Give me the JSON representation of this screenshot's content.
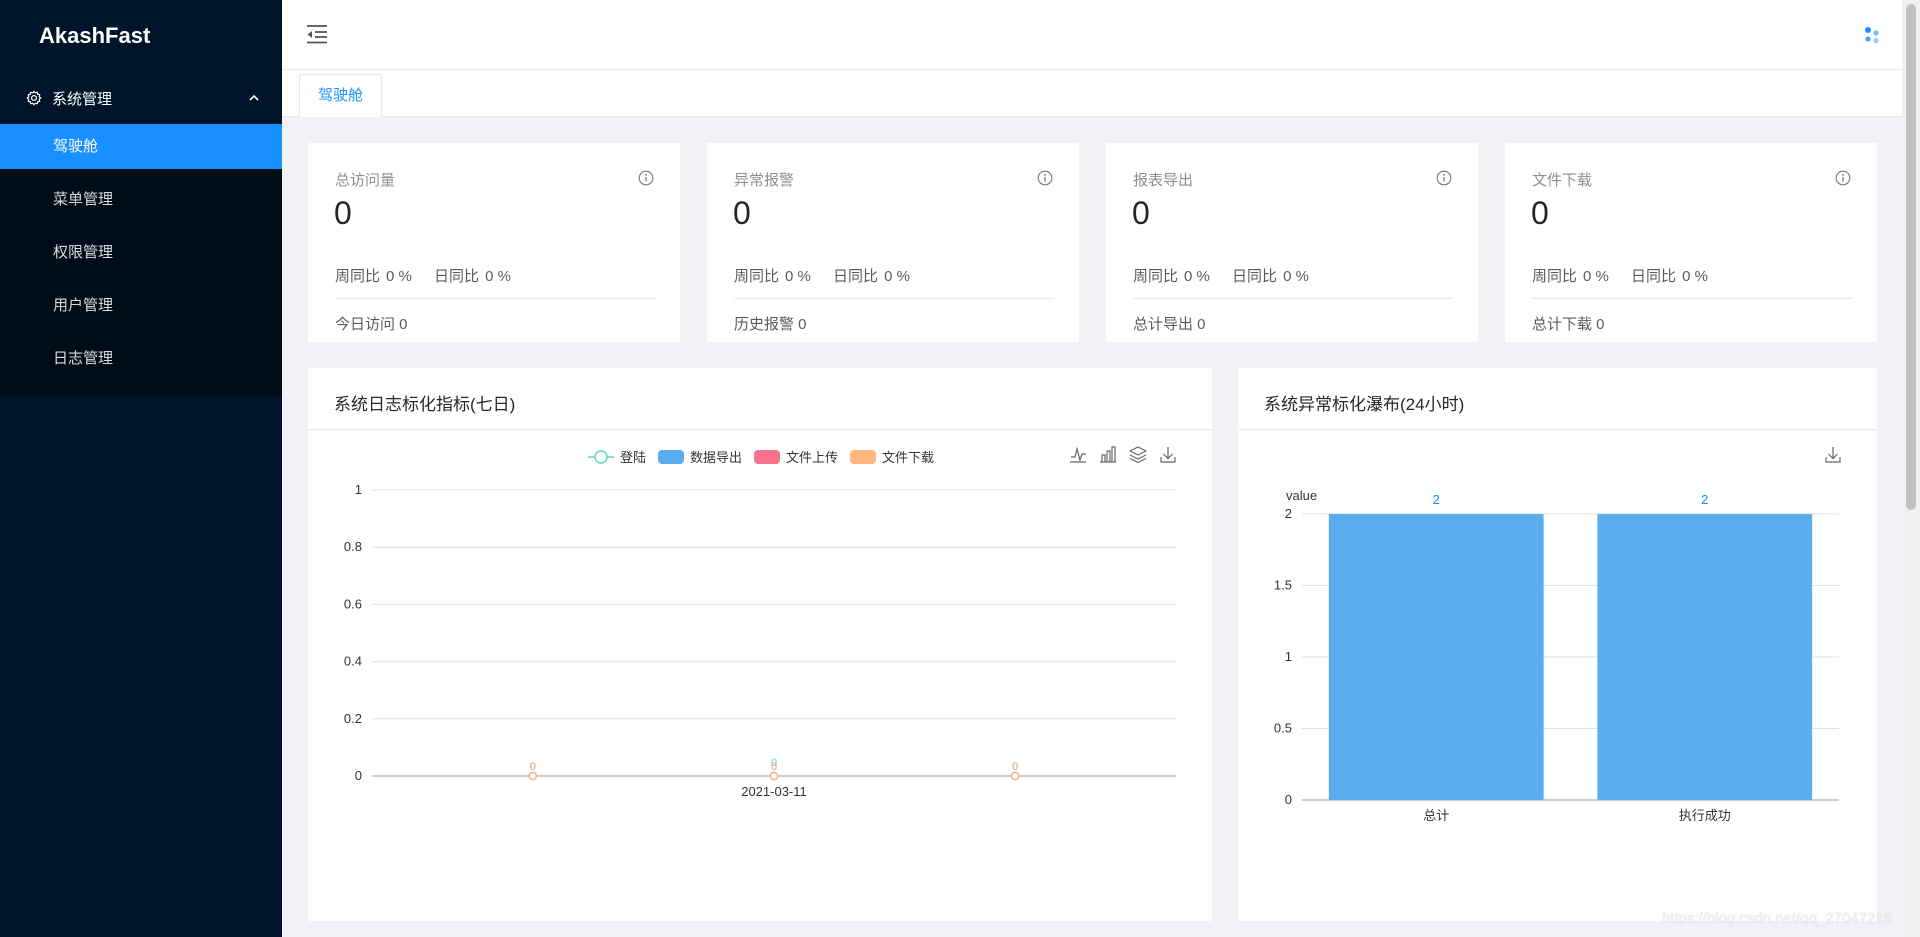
{
  "app": {
    "logo": "AkashFast"
  },
  "sidebar": {
    "group_label": "系统管理",
    "items": [
      {
        "label": "驾驶舱",
        "active": true
      },
      {
        "label": "菜单管理"
      },
      {
        "label": "权限管理"
      },
      {
        "label": "用户管理"
      },
      {
        "label": "日志管理"
      }
    ]
  },
  "tabs": [
    {
      "label": "驾驶舱"
    }
  ],
  "stats": [
    {
      "title": "总访问量",
      "value": "0",
      "week": "周同比",
      "week_val": "0 %",
      "day": "日同比",
      "day_val": "0 %",
      "footer": "今日访问 0"
    },
    {
      "title": "异常报警",
      "value": "0",
      "week": "周同比",
      "week_val": "0 %",
      "day": "日同比",
      "day_val": "0 %",
      "footer": "历史报警 0"
    },
    {
      "title": "报表导出",
      "value": "0",
      "week": "周同比",
      "week_val": "0 %",
      "day": "日同比",
      "day_val": "0 %",
      "footer": "总计导出 0"
    },
    {
      "title": "文件下载",
      "value": "0",
      "week": "周同比",
      "week_val": "0 %",
      "day": "日同比",
      "day_val": "0 %",
      "footer": "总计下载 0"
    }
  ],
  "charts": {
    "left_title": "系统日志标化指标(七日)",
    "right_title": "系统异常标化瀑布(24小时)"
  },
  "chart_data": [
    {
      "type": "line",
      "title": "系统日志标化指标(七日)",
      "categories": [
        "",
        "2021-03-11",
        ""
      ],
      "series": [
        {
          "name": "登陆",
          "values": [
            0,
            0,
            0
          ],
          "color": "#5ad8c4"
        },
        {
          "name": "数据导出",
          "values": [
            0,
            0,
            0
          ],
          "color": "#5aaef0"
        },
        {
          "name": "文件上传",
          "values": [
            0,
            0,
            0
          ],
          "color": "#f7738c"
        },
        {
          "name": "文件下载",
          "values": [
            0,
            0,
            0
          ],
          "color": "#ffb980"
        }
      ],
      "yticks": [
        "0",
        "0.2",
        "0.4",
        "0.6",
        "0.8",
        "1"
      ],
      "ylim": [
        0,
        1
      ],
      "grid": true,
      "legend": "top-center"
    },
    {
      "type": "bar",
      "title": "系统异常标化瀑布(24小时)",
      "categories": [
        "总计",
        "执行成功"
      ],
      "values": [
        2,
        2
      ],
      "ylabel": "value",
      "yticks": [
        "0",
        "0.5",
        "1",
        "1.5",
        "2"
      ],
      "ylim": [
        0,
        2
      ],
      "color": "#5aaef0",
      "grid": true
    }
  ],
  "watermark": "https://blog.csdn.net/qq_27047215"
}
